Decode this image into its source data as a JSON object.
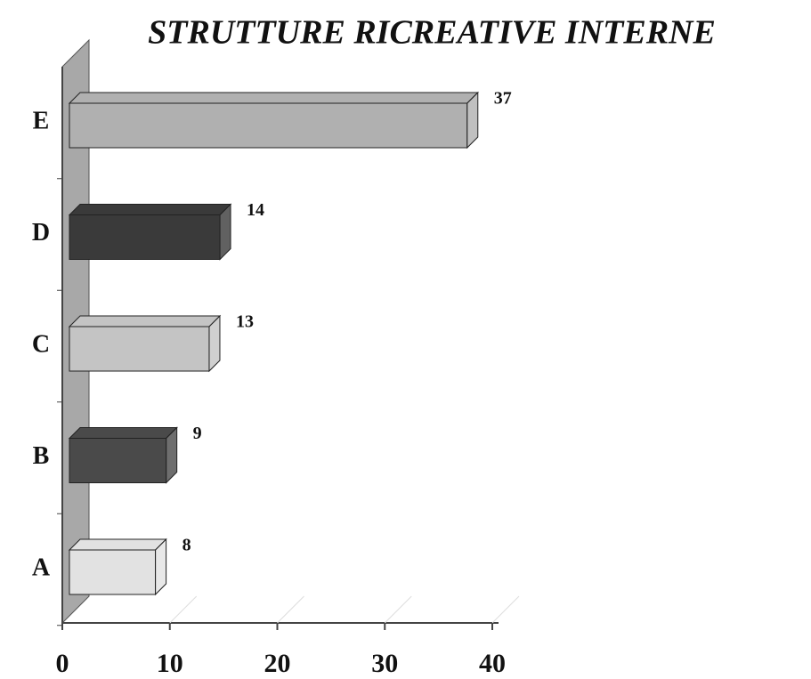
{
  "chart_data": {
    "type": "bar",
    "orientation": "horizontal",
    "title": "STRUTTURE RICREATIVE INTERNE",
    "categories": [
      "A",
      "B",
      "C",
      "D",
      "E"
    ],
    "values": [
      8,
      9,
      13,
      14,
      37
    ],
    "colors": [
      "#e2e2e2",
      "#4a4a4a",
      "#c4c4c4",
      "#3a3a3a",
      "#b0b0b0"
    ],
    "xlim": [
      0,
      40
    ],
    "xticks": [
      0,
      10,
      20,
      30,
      40
    ],
    "grid": true
  }
}
